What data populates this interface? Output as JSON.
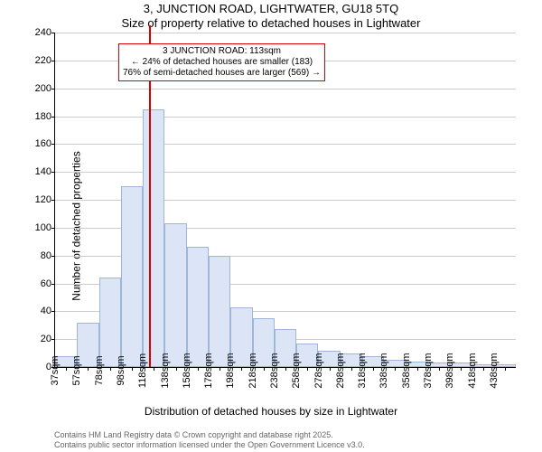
{
  "titles": {
    "line1": "3, JUNCTION ROAD, LIGHTWATER, GU18 5TQ",
    "line2": "Size of property relative to detached houses in Lightwater"
  },
  "axes": {
    "y_label": "Number of detached properties",
    "x_label": "Distribution of detached houses by size in Lightwater",
    "y": {
      "min": 0,
      "max": 240,
      "step": 20
    },
    "x_ticks": [
      "37sqm",
      "57sqm",
      "78sqm",
      "98sqm",
      "118sqm",
      "138sqm",
      "158sqm",
      "178sqm",
      "198sqm",
      "218sqm",
      "238sqm",
      "258sqm",
      "278sqm",
      "298sqm",
      "318sqm",
      "338sqm",
      "358sqm",
      "378sqm",
      "398sqm",
      "418sqm",
      "438sqm"
    ]
  },
  "chart": {
    "type": "histogram",
    "bar_fill": "#dbe5f5",
    "bar_border": "#9fb6d9",
    "grid_color": "#cccccc",
    "background": "#ffffff",
    "reference_line_color": "#dd0000",
    "info_box_border": "#dd0000",
    "bars": [
      8,
      32,
      64,
      130,
      185,
      103,
      86,
      80,
      43,
      35,
      27,
      17,
      12,
      10,
      8,
      5,
      4,
      3,
      3,
      2,
      2
    ]
  },
  "reference": {
    "position_index": 3.8,
    "info_box": {
      "line1": "3 JUNCTION ROAD: 113sqm",
      "line2": "← 24% of detached houses are smaller (183)",
      "line3": "76% of semi-detached houses are larger (569) →"
    }
  },
  "footer": {
    "line1": "Contains HM Land Registry data © Crown copyright and database right 2025.",
    "line2": "Contains public sector information licensed under the Open Government Licence v3.0."
  }
}
